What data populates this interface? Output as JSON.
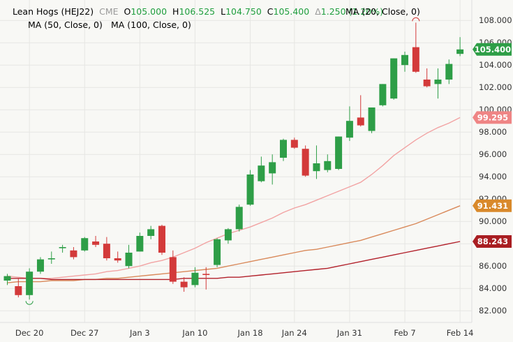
{
  "legend": {
    "symbol": "Lean Hogs (HEJ22)",
    "exchange": "CME",
    "open_label": "O",
    "open_value": "105.000",
    "high_label": "H",
    "high_value": "106.525",
    "low_label": "L",
    "low_value": "104.750",
    "close_label": "C",
    "close_value": "105.400",
    "change_label": "Δ",
    "change_value": "1.250 (1.20%)",
    "ma20": "MA (20, Close, 0)",
    "ma50": "MA (50, Close, 0)",
    "ma100": "MA (100, Close, 0)"
  },
  "colors": {
    "up": "#2e9e47",
    "down": "#d33a3a",
    "ma20": "#f2a3a3",
    "ma50": "#d9895a",
    "ma100": "#b2202a",
    "last_price_badge": "#2e9e47",
    "ma20_badge": "#ef8585",
    "ma50_badge": "#d9892b",
    "ma100_badge": "#a91e22",
    "legend_text": "#000000",
    "legend_green": "#1f9e3e",
    "legend_grey": "#999999"
  },
  "chart_data": {
    "type": "candlestick",
    "ylim": [
      81.2,
      109.2
    ],
    "y_ticks": [
      "82.000",
      "84.000",
      "86.000",
      "88.000",
      "90.000",
      "92.000",
      "94.000",
      "96.000",
      "98.000",
      "100.000",
      "102.000",
      "104.000",
      "106.000",
      "108.000"
    ],
    "x_ticks": [
      {
        "label": "Dec 20",
        "index": 2
      },
      {
        "label": "Dec 27",
        "index": 7
      },
      {
        "label": "Jan 3",
        "index": 12
      },
      {
        "label": "Jan 10",
        "index": 17
      },
      {
        "label": "Jan 18",
        "index": 22
      },
      {
        "label": "Jan 24",
        "index": 26
      },
      {
        "label": "Jan 31",
        "index": 31
      },
      {
        "label": "Feb 7",
        "index": 36
      },
      {
        "label": "Feb 14",
        "index": 41
      }
    ],
    "candles": [
      {
        "o": 84.7,
        "h": 85.3,
        "l": 84.3,
        "c": 85.1
      },
      {
        "o": 84.2,
        "h": 84.9,
        "l": 83.2,
        "c": 83.4
      },
      {
        "o": 83.4,
        "h": 85.8,
        "l": 83.0,
        "c": 85.5
      },
      {
        "o": 85.5,
        "h": 86.8,
        "l": 85.3,
        "c": 86.6
      },
      {
        "o": 86.6,
        "h": 87.3,
        "l": 86.2,
        "c": 86.7
      },
      {
        "o": 87.6,
        "h": 87.9,
        "l": 87.2,
        "c": 87.7
      },
      {
        "o": 87.4,
        "h": 87.7,
        "l": 86.6,
        "c": 86.8
      },
      {
        "o": 87.4,
        "h": 88.6,
        "l": 87.3,
        "c": 88.5
      },
      {
        "o": 88.2,
        "h": 88.7,
        "l": 87.7,
        "c": 87.9
      },
      {
        "o": 88.0,
        "h": 88.6,
        "l": 86.5,
        "c": 86.7
      },
      {
        "o": 86.7,
        "h": 87.3,
        "l": 86.3,
        "c": 86.5
      },
      {
        "o": 86.0,
        "h": 87.9,
        "l": 85.8,
        "c": 87.2
      },
      {
        "o": 87.3,
        "h": 89.0,
        "l": 87.3,
        "c": 88.7
      },
      {
        "o": 88.7,
        "h": 89.6,
        "l": 88.4,
        "c": 89.3
      },
      {
        "o": 89.6,
        "h": 89.7,
        "l": 87.0,
        "c": 87.2
      },
      {
        "o": 86.8,
        "h": 87.4,
        "l": 84.4,
        "c": 84.6
      },
      {
        "o": 84.6,
        "h": 85.0,
        "l": 83.7,
        "c": 84.1
      },
      {
        "o": 84.3,
        "h": 85.9,
        "l": 84.1,
        "c": 85.4
      },
      {
        "o": 85.3,
        "h": 85.9,
        "l": 83.9,
        "c": 85.2
      },
      {
        "o": 86.1,
        "h": 88.5,
        "l": 85.9,
        "c": 88.4
      },
      {
        "o": 88.3,
        "h": 89.4,
        "l": 88.0,
        "c": 89.3
      },
      {
        "o": 89.3,
        "h": 91.5,
        "l": 89.1,
        "c": 91.3
      },
      {
        "o": 91.5,
        "h": 94.6,
        "l": 91.4,
        "c": 94.2
      },
      {
        "o": 93.6,
        "h": 95.8,
        "l": 93.5,
        "c": 95.0
      },
      {
        "o": 94.3,
        "h": 96.0,
        "l": 93.3,
        "c": 95.3
      },
      {
        "o": 95.7,
        "h": 97.4,
        "l": 95.4,
        "c": 97.3
      },
      {
        "o": 97.3,
        "h": 97.5,
        "l": 96.5,
        "c": 96.6
      },
      {
        "o": 96.5,
        "h": 96.8,
        "l": 94.0,
        "c": 94.1
      },
      {
        "o": 94.5,
        "h": 96.8,
        "l": 93.8,
        "c": 95.2
      },
      {
        "o": 94.6,
        "h": 96.0,
        "l": 94.4,
        "c": 95.4
      },
      {
        "o": 94.7,
        "h": 97.6,
        "l": 94.6,
        "c": 97.6
      },
      {
        "o": 97.5,
        "h": 100.3,
        "l": 97.2,
        "c": 99.0
      },
      {
        "o": 99.3,
        "h": 101.3,
        "l": 98.5,
        "c": 98.6
      },
      {
        "o": 98.1,
        "h": 100.2,
        "l": 97.9,
        "c": 100.2
      },
      {
        "o": 100.4,
        "h": 102.3,
        "l": 100.3,
        "c": 102.3
      },
      {
        "o": 101.0,
        "h": 104.6,
        "l": 100.9,
        "c": 104.6
      },
      {
        "o": 104.0,
        "h": 105.2,
        "l": 103.4,
        "c": 104.9
      },
      {
        "o": 105.6,
        "h": 107.8,
        "l": 103.3,
        "c": 103.4
      },
      {
        "o": 102.7,
        "h": 103.7,
        "l": 102.0,
        "c": 102.1
      },
      {
        "o": 102.3,
        "h": 103.7,
        "l": 101.0,
        "c": 102.7
      },
      {
        "o": 102.7,
        "h": 104.5,
        "l": 102.3,
        "c": 104.1
      },
      {
        "o": 105.0,
        "h": 106.5,
        "l": 104.8,
        "c": 105.4
      }
    ],
    "series": [
      {
        "name": "MA (20, Close, 0)",
        "values": [
          85.1,
          85.0,
          84.9,
          84.9,
          84.9,
          85.0,
          85.1,
          85.2,
          85.3,
          85.5,
          85.6,
          85.8,
          86.0,
          86.3,
          86.5,
          86.8,
          87.2,
          87.6,
          88.1,
          88.5,
          88.9,
          89.2,
          89.5,
          89.9,
          90.3,
          90.8,
          91.2,
          91.5,
          91.9,
          92.3,
          92.7,
          93.1,
          93.5,
          94.2,
          95.0,
          95.9,
          96.6,
          97.3,
          97.9,
          98.4,
          98.8,
          99.3
        ],
        "last_label": "99.295"
      },
      {
        "name": "MA (50, Close, 0)",
        "values": [
          84.5,
          84.6,
          84.6,
          84.6,
          84.7,
          84.7,
          84.7,
          84.8,
          84.8,
          84.9,
          84.9,
          85.0,
          85.1,
          85.2,
          85.3,
          85.4,
          85.5,
          85.6,
          85.7,
          85.8,
          86.0,
          86.2,
          86.4,
          86.6,
          86.8,
          87.0,
          87.2,
          87.4,
          87.5,
          87.7,
          87.9,
          88.1,
          88.3,
          88.6,
          88.9,
          89.2,
          89.5,
          89.8,
          90.2,
          90.6,
          91.0,
          91.4
        ],
        "last_label": "91.431"
      },
      {
        "name": "MA (100, Close, 0)",
        "values": [
          84.9,
          84.9,
          84.9,
          84.9,
          84.8,
          84.8,
          84.8,
          84.8,
          84.8,
          84.8,
          84.8,
          84.8,
          84.8,
          84.8,
          84.8,
          84.8,
          84.9,
          84.9,
          84.9,
          84.9,
          85.0,
          85.0,
          85.1,
          85.2,
          85.3,
          85.4,
          85.5,
          85.6,
          85.7,
          85.8,
          86.0,
          86.2,
          86.4,
          86.6,
          86.8,
          87.0,
          87.2,
          87.4,
          87.6,
          87.8,
          88.0,
          88.2
        ],
        "last_label": "88.243"
      }
    ],
    "last_price_label": "105.400",
    "grid": true
  }
}
